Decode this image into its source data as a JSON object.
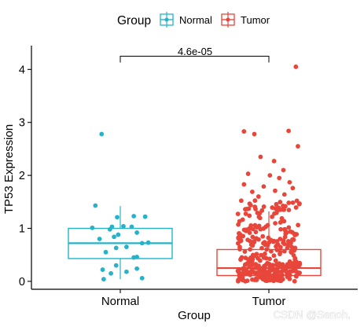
{
  "chart_data": {
    "type": "box",
    "xlabel": "Group",
    "ylabel": "TP53 Expression",
    "categories": [
      "Normal",
      "Tumor"
    ],
    "ylim": [
      -0.15,
      4.45
    ],
    "yticks": [
      0,
      1,
      2,
      3,
      4
    ],
    "grid": false,
    "legend": {
      "title": "Group",
      "position": "top",
      "entries": [
        "Normal",
        "Tumor"
      ]
    },
    "colors": {
      "Normal": "#26b3c9",
      "Tumor": "#e8463b"
    },
    "annotation": {
      "text": "4.6e-05",
      "between": [
        "Normal",
        "Tumor"
      ],
      "y": 4.25
    },
    "series": [
      {
        "name": "Normal",
        "box": {
          "q1": 0.43,
          "median": 0.72,
          "q3": 1.0,
          "whisker_low": 0.04,
          "whisker_high": 1.42
        },
        "points": [
          [
            -0.18,
            2.78
          ],
          [
            -0.24,
            1.43
          ],
          [
            0.13,
            1.23
          ],
          [
            0.24,
            1.22
          ],
          [
            -0.03,
            1.21
          ],
          [
            -0.08,
            1.03
          ],
          [
            -0.27,
            1.01
          ],
          [
            0.03,
            1.04
          ],
          [
            0.11,
            1.03
          ],
          [
            -0.1,
            0.98
          ],
          [
            0.16,
            0.92
          ],
          [
            -0.02,
            0.88
          ],
          [
            -0.06,
            0.84
          ],
          [
            -0.2,
            0.8
          ],
          [
            0.27,
            0.73
          ],
          [
            0.21,
            0.72
          ],
          [
            0.06,
            0.65
          ],
          [
            -0.04,
            0.63
          ],
          [
            -0.14,
            0.55
          ],
          [
            0.16,
            0.46
          ],
          [
            0.13,
            0.45
          ],
          [
            -0.04,
            0.3
          ],
          [
            0.16,
            0.24
          ],
          [
            -0.17,
            0.22
          ],
          [
            0.06,
            0.18
          ],
          [
            -0.09,
            0.15
          ],
          [
            0.21,
            0.06
          ],
          [
            -0.16,
            0.04
          ]
        ]
      },
      {
        "name": "Tumor",
        "box": {
          "q1": 0.11,
          "median": 0.25,
          "q3": 0.6,
          "whisker_low": 0.0,
          "whisker_high": 1.32
        },
        "points": [
          [
            0.26,
            4.05
          ],
          [
            -0.24,
            2.83
          ],
          [
            0.19,
            2.84
          ],
          [
            -0.14,
            2.78
          ],
          [
            0.28,
            2.55
          ],
          [
            -0.08,
            2.35
          ],
          [
            0.05,
            2.27
          ],
          [
            0.14,
            2.1
          ],
          [
            -0.2,
            2.03
          ],
          [
            0.01,
            2.0
          ],
          [
            0.1,
            1.95
          ],
          [
            0.2,
            1.87
          ],
          [
            -0.24,
            1.83
          ],
          [
            -0.05,
            1.79
          ],
          [
            0.23,
            1.76
          ],
          [
            0.06,
            1.71
          ],
          [
            -0.16,
            1.69
          ],
          [
            0.15,
            1.64
          ],
          [
            -0.1,
            1.6
          ],
          [
            0.27,
            1.52
          ]
        ]
      }
    ]
  }
}
